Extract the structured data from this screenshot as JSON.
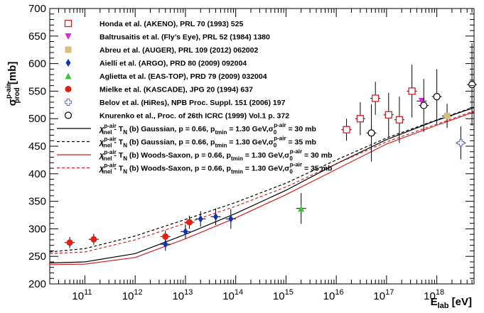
{
  "chart_data": {
    "type": "scatter",
    "xscale": "log",
    "xlim": [
      20000000000.0,
      5.5e+18
    ],
    "ylim": [
      200,
      700
    ],
    "xlabel": "E",
    "xlabel_sub": "lab",
    "xlabel_unit": " [eV]",
    "ylabel": "σ",
    "ylabel_sup": "p-air",
    "ylabel_sub": "prod",
    "ylabel_unit": " [mb]",
    "y_ticks": [
      "200",
      "250",
      "300",
      "350",
      "400",
      "450",
      "500",
      "550",
      "600",
      "650",
      "700"
    ],
    "x_ticks": [
      {
        "base": "10",
        "exp": "11",
        "value": 100000000000.0
      },
      {
        "base": "10",
        "exp": "12",
        "value": 1000000000000.0
      },
      {
        "base": "10",
        "exp": "13",
        "value": 10000000000000.0
      },
      {
        "base": "10",
        "exp": "14",
        "value": 100000000000000.0
      },
      {
        "base": "10",
        "exp": "15",
        "value": 1000000000000000.0
      },
      {
        "base": "10",
        "exp": "16",
        "value": 1e+16
      },
      {
        "base": "10",
        "exp": "17",
        "value": 1e+17
      },
      {
        "base": "10",
        "exp": "18",
        "value": 1e+18
      }
    ],
    "legend_position": "top-left",
    "series": [
      {
        "name": "Honda et al. (AKENO), PRL 70 (1993) 525",
        "marker": "open-square",
        "color": "#d42020",
        "points": [
          {
            "x": 1.6e+16,
            "y": 480,
            "dy": 20
          },
          {
            "x": 3e+16,
            "y": 500,
            "dy": 30
          },
          {
            "x": 6e+16,
            "y": 537,
            "dy": 30
          },
          {
            "x": 1.1e+17,
            "y": 507,
            "dy": 40
          },
          {
            "x": 1.8e+17,
            "y": 498,
            "dy": 42
          },
          {
            "x": 3.2e+17,
            "y": 550,
            "dy": 48
          }
        ]
      },
      {
        "name": "Baltrusaitis et al. (Fly’s Eye), PRL 52 (1984) 1380",
        "marker": "down-triangle",
        "color": "#e020e0",
        "points": [
          {
            "x": 5e+17,
            "y": 532,
            "dy": 0
          }
        ]
      },
      {
        "name": "Abreu et al. (AUGER), PRL 109 (2012) 062002",
        "marker": "filled-square",
        "color": "#d4c07a",
        "points": [
          {
            "x": 1.6e+18,
            "y": 505,
            "dy": 22
          }
        ]
      },
      {
        "name": "Aielli et al. (ARGO), PRD 80 (2009) 092004",
        "marker": "diamond",
        "color": "#1030c0",
        "points": [
          {
            "x": 4000000000000.0,
            "y": 272,
            "dy": 12
          },
          {
            "x": 10000000000000.0,
            "y": 295,
            "dy": 13
          },
          {
            "x": 20000000000000.0,
            "y": 318,
            "dy": 14
          },
          {
            "x": 40000000000000.0,
            "y": 322,
            "dy": 15
          },
          {
            "x": 80000000000000.0,
            "y": 318,
            "dy": 18
          }
        ]
      },
      {
        "name": "Aglietta et al. (EAS-TOP), PRD 79 (2009) 032004",
        "marker": "triangle",
        "color": "#40c040",
        "points": [
          {
            "x": 2000000000000000.0,
            "y": 337,
            "dy": 28
          }
        ]
      },
      {
        "name": "Mielke et al. (KASCADE), JPG 20 (1994) 637",
        "marker": "filled-circle",
        "color": "#e02010",
        "points": [
          {
            "x": 50000000000.0,
            "y": 275,
            "dy": 10
          },
          {
            "x": 150000000000.0,
            "y": 281,
            "dy": 10
          },
          {
            "x": 4000000000000.0,
            "y": 286,
            "dy": 11
          },
          {
            "x": 12000000000000.0,
            "y": 312,
            "dy": 12
          }
        ]
      },
      {
        "name": "Belov et al. (HiRes), NPB Proc. Suppl. 151 (2006) 197",
        "marker": "open-cross",
        "color": "#7070d0",
        "points": [
          {
            "x": 3e+18,
            "y": 456,
            "dy": 30
          }
        ]
      },
      {
        "name": "Knurenko et al., Proc. of 26th ICRC (1999) Vol.1 p. 372",
        "marker": "open-circle",
        "color": "#000000",
        "points": [
          {
            "x": 5e+16,
            "y": 474,
            "dy": 52
          },
          {
            "x": 5.5e+17,
            "y": 524,
            "dy": 48
          },
          {
            "x": 1e+18,
            "y": 540,
            "dy": 50
          },
          {
            "x": 5e+18,
            "y": 562,
            "dy": 75
          }
        ]
      }
    ],
    "curves": [
      {
        "name_main": "χ",
        "name_sup": "p-air",
        "name_sub": "inel",
        "name_rest": " - T",
        "name_rest_sub": "N",
        "name_tail": " (b) Gaussian, p = 0.66, p",
        "name_tail_sub": "tmin",
        "name_tail2": " = 1.30 GeV,σ",
        "name_tail2_sub": "0",
        "name_tail2_sup": "p-air",
        "name_end": " = 30 mb",
        "color": "#000000",
        "dash": "solid",
        "x": [
          20000000000.0,
          100000000000.0,
          1000000000000.0,
          10000000000000.0,
          100000000000000.0,
          1000000000000000.0,
          1e+16,
          1e+17,
          1e+18,
          5.5e+18
        ],
        "y": [
          238,
          240,
          255,
          290,
          328,
          370,
          418,
          462,
          497,
          520
        ]
      },
      {
        "name_main": "χ",
        "name_sup": "p-air",
        "name_sub": "inel",
        "name_rest": " - T",
        "name_rest_sub": "N",
        "name_tail": " (b) Gaussian, p = 0.66, p",
        "name_tail_sub": "tmin",
        "name_tail2": " = 1.30 GeV,σ",
        "name_tail2_sub": "0",
        "name_tail2_sup": "p-air",
        "name_end": " = 35 mb",
        "color": "#000000",
        "dash": "dashed",
        "x": [
          20000000000.0,
          100000000000.0,
          1000000000000.0,
          10000000000000.0,
          100000000000000.0,
          1000000000000000.0,
          1e+16,
          1e+17,
          1e+18,
          5.5e+18
        ],
        "y": [
          258,
          264,
          287,
          317,
          348,
          383,
          425,
          465,
          498,
          521
        ]
      },
      {
        "name_main": "χ",
        "name_sup": "p-air",
        "name_sub": "inel",
        "name_rest": " - T",
        "name_rest_sub": "N",
        "name_tail": " (b) Woods-Saxon, p = 0.66, p",
        "name_tail_sub": "tmin",
        "name_tail2": " = 1.30 GeV,σ",
        "name_tail2_sub": "0",
        "name_tail2_sup": "p-air",
        "name_end": " = 30 mb",
        "color": "#d42020",
        "dash": "solid",
        "x": [
          20000000000.0,
          100000000000.0,
          1000000000000.0,
          10000000000000.0,
          100000000000000.0,
          1000000000000000.0,
          1e+16,
          1e+17,
          1e+18,
          5.5e+18
        ],
        "y": [
          235,
          236,
          248,
          282,
          320,
          362,
          408,
          454,
          488,
          512
        ]
      },
      {
        "name_main": "χ",
        "name_sup": "p-air",
        "name_sub": "inel",
        "name_rest": " - T",
        "name_rest_sub": "N",
        "name_tail": " (b) Woods-Saxon, p = 0.66, p",
        "name_tail_sub": "tmin",
        "name_tail2": " = 1.30 GeV,σ",
        "name_tail2_sub": "0",
        "name_tail2_sup": "p-air",
        "name_end": " = 35 mb",
        "color": "#d42020",
        "dash": "dashed",
        "x": [
          20000000000.0,
          100000000000.0,
          1000000000000.0,
          10000000000000.0,
          100000000000000.0,
          1000000000000000.0,
          1e+16,
          1e+17,
          1e+18,
          5.5e+18
        ],
        "y": [
          255,
          258,
          280,
          310,
          341,
          376,
          418,
          458,
          490,
          514
        ]
      }
    ]
  }
}
